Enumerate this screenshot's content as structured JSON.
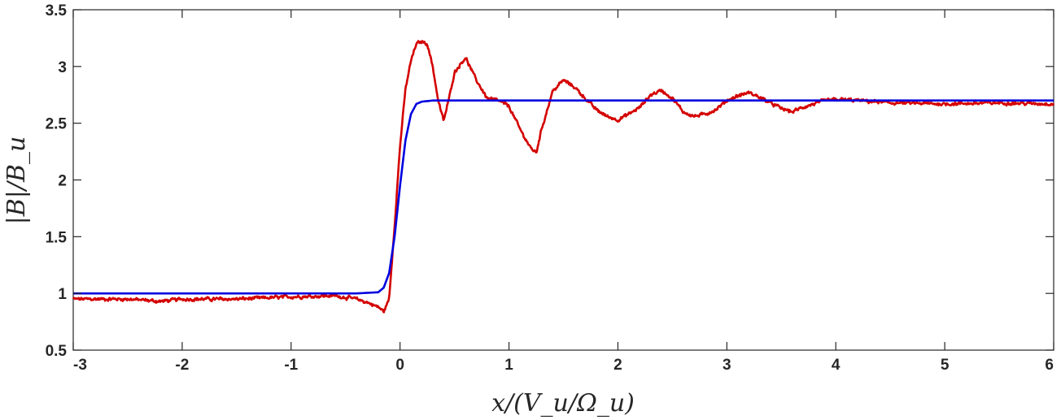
{
  "chart_data": {
    "type": "line",
    "title": "",
    "xlabel": "x/(V_u/Ω_u)",
    "ylabel": "|B|/B_u",
    "xlim": [
      -3,
      6
    ],
    "ylim": [
      0.5,
      3.5
    ],
    "xticks": [
      "-3",
      "-2",
      "-1",
      "0",
      "1",
      "2",
      "3",
      "4",
      "5",
      "6"
    ],
    "yticks": [
      "0.5",
      "1",
      "1.5",
      "2",
      "2.5",
      "3",
      "3.5"
    ],
    "grid": false,
    "legend": "none",
    "series": [
      {
        "color": "#d40000",
        "noisy": true,
        "x": [
          -3,
          -2.5,
          -2.2,
          -2,
          -1.5,
          -1,
          -0.6,
          -0.4,
          -0.3,
          -0.2,
          -0.15,
          -0.1,
          -0.05,
          0,
          0.05,
          0.1,
          0.15,
          0.2,
          0.25,
          0.3,
          0.35,
          0.4,
          0.45,
          0.5,
          0.6,
          0.7,
          0.8,
          0.9,
          1.0,
          1.1,
          1.2,
          1.25,
          1.3,
          1.4,
          1.5,
          1.6,
          1.7,
          1.8,
          1.9,
          2.0,
          2.1,
          2.2,
          2.3,
          2.4,
          2.5,
          2.6,
          2.7,
          2.8,
          2.9,
          3.0,
          3.1,
          3.2,
          3.3,
          3.4,
          3.5,
          3.6,
          3.7,
          3.8,
          3.9,
          4.0,
          4.2,
          4.5,
          5.0,
          5.5,
          6.0
        ],
        "y": [
          0.95,
          0.95,
          0.93,
          0.95,
          0.95,
          0.97,
          0.98,
          0.95,
          0.92,
          0.88,
          0.84,
          0.95,
          1.6,
          2.3,
          2.8,
          3.05,
          3.2,
          3.22,
          3.2,
          3.0,
          2.7,
          2.52,
          2.72,
          2.95,
          3.08,
          2.88,
          2.72,
          2.7,
          2.65,
          2.45,
          2.28,
          2.24,
          2.45,
          2.78,
          2.88,
          2.82,
          2.72,
          2.62,
          2.56,
          2.53,
          2.58,
          2.64,
          2.75,
          2.79,
          2.72,
          2.6,
          2.56,
          2.58,
          2.62,
          2.7,
          2.74,
          2.77,
          2.73,
          2.68,
          2.63,
          2.6,
          2.64,
          2.67,
          2.7,
          2.71,
          2.7,
          2.68,
          2.67,
          2.68,
          2.67
        ]
      },
      {
        "color": "#0000e0",
        "noisy": false,
        "x": [
          -3,
          -1,
          -0.4,
          -0.2,
          -0.15,
          -0.1,
          -0.05,
          0,
          0.05,
          0.1,
          0.15,
          0.2,
          0.3,
          0.5,
          1,
          6
        ],
        "y": [
          1.0,
          1.0,
          1.0,
          1.01,
          1.05,
          1.18,
          1.5,
          1.95,
          2.35,
          2.58,
          2.67,
          2.69,
          2.7,
          2.7,
          2.7,
          2.7
        ]
      }
    ]
  }
}
